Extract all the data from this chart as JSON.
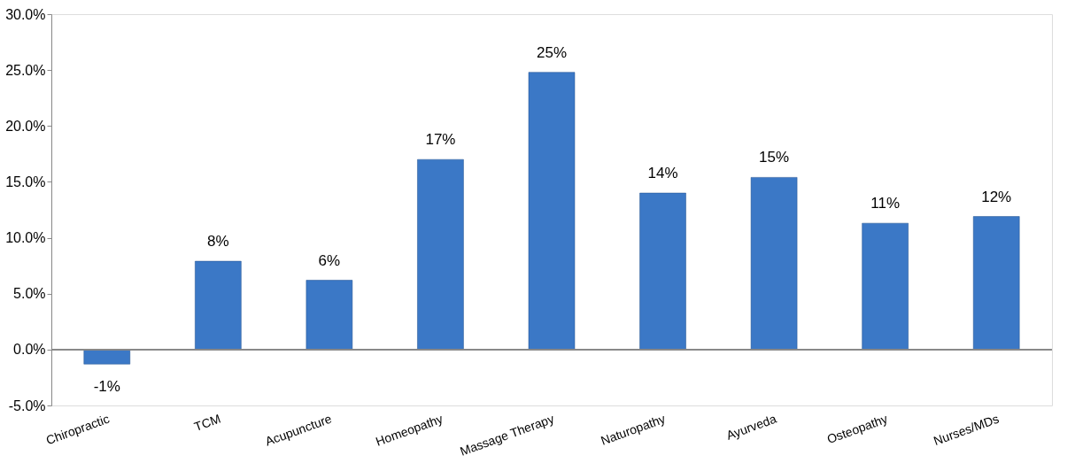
{
  "chart_data": {
    "type": "bar",
    "categories": [
      "Chiropractic",
      "TCM",
      "Acupuncture",
      "Homeopathy",
      "Massage Therapy",
      "Naturopathy",
      "Ayurveda",
      "Osteopathy",
      "Nurses/MDs"
    ],
    "values": [
      -1.3,
      7.9,
      6.2,
      17.0,
      24.8,
      14.0,
      15.4,
      11.3,
      11.9
    ],
    "value_labels": [
      "-1%",
      "8%",
      "6%",
      "17%",
      "25%",
      "14%",
      "15%",
      "11%",
      "12%"
    ],
    "color": "#3b78c6",
    "ylim": [
      -5,
      30
    ],
    "yticks": [
      {
        "value": -5,
        "label": "-5.0%"
      },
      {
        "value": 0,
        "label": "0.0%"
      },
      {
        "value": 5,
        "label": "5.0%"
      },
      {
        "value": 10,
        "label": "10.0%"
      },
      {
        "value": 15,
        "label": "15.0%"
      },
      {
        "value": 20,
        "label": "20.0%"
      },
      {
        "value": 25,
        "label": "25.0%"
      },
      {
        "value": 30,
        "label": "30.0%"
      }
    ],
    "line_style": "solid"
  }
}
